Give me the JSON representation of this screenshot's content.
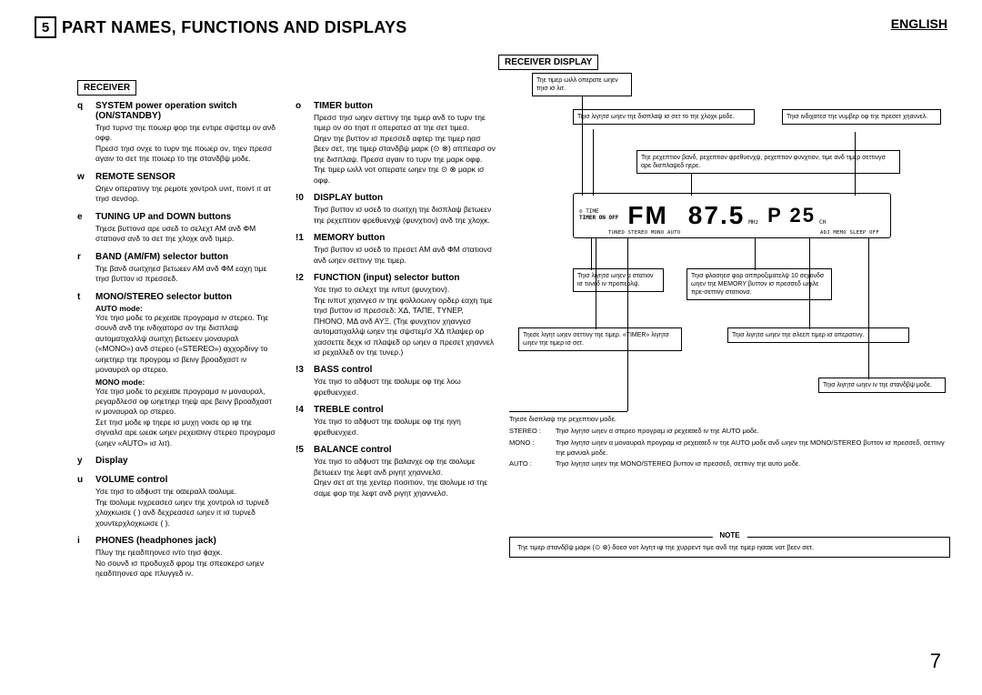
{
  "language": "ENGLISH",
  "section_number": "5",
  "section_title": "PART NAMES, FUNCTIONS AND DISPLAYS",
  "receiver_label": "RECEIVER",
  "receiver_display_label": "RECEIVER DISPLAY",
  "page_number": "7",
  "col1": [
    {
      "key": "q",
      "title": "SYSTEM power operation switch (ON/STANDBY)",
      "text": "Τηισ τυρνσ τηε ποωερ φορ τηε εντιρε σψστεμ ον ανδ οφφ.\nΠρεσσ τηισ ονχε το τυρν τηε ποωερ ον, τηεν πρεσσ αγαιν το σετ τηε ποωερ το τηε στανδβψ μοδε."
    },
    {
      "key": "w",
      "title": "REMOTE SENSOR",
      "text": "Ωηεν οπερατινγ τηε ρεμοτε χοντρολ υνιτ, ποιντ ιτ ατ τηισ σενσορ."
    },
    {
      "key": "e",
      "title": "TUNING UP and DOWN buttons",
      "text": "Τηεσε βυττονσ αρε υσεδ το σελεχτ ΑΜ ανδ ΦΜ στατιονσ ανδ το σετ τηε χλοχκ ανδ τιμερ."
    },
    {
      "key": "r",
      "title": "BAND (AM/FM) selector button",
      "text": "Τηε βανδ σωιτχηεσ βετωεεν ΑΜ ανδ ΦΜ εαχη τιμε τηισ βυττον ισ πρεσσεδ."
    },
    {
      "key": "t",
      "title": "MONO/STEREO selector button",
      "text": "",
      "sub": [
        {
          "h": "AUTO mode:",
          "t": "Υσε τηισ μοδε το ρεχειϖε προγραμσ ιν στερεο. Τηε σουνδ ανδ τηε ινδιχατορσ ον τηε δισπλαψ αυτοματιχαλλψ σωιτχη βετωεεν μοναυραλ («MONO») ανδ στερεο («STEREO») αχχορδινγ το ωηετηερ τηε προγραμ ισ βεινγ βροαδχαστ ιν μοναυραλ ορ στερεο."
        },
        {
          "h": "MONO mode:",
          "t": "Υσε τηισ μοδε το ρεχειϖε προγραμσ ιν μοναυραλ, ρεγαρδλεσσ οφ ωηετηερ τηεψ αρε βεινγ βροαδχαστ ιν μοναυραλ ορ στερεο.\nΣετ τηισ μοδε ιφ τηερε ισ μυχη νοισε ορ ιφ τηε σιγναλσ αρε ωεακ ωηεν ρεχειϖινγ στερεο προγραμσ (ωηεν «AUTO» ισ λιτ)."
        }
      ]
    },
    {
      "key": "y",
      "title": "Display",
      "text": ""
    },
    {
      "key": "u",
      "title": "VOLUME control",
      "text": "Υσε τηισ το αδϕυστ τηε οϖεραλλ ϖολυμε.\nΤηε ϖολυμε ινχρεασεσ ωηεν τηε χοντρολ ισ τυρνεδ χλοχκωισε ( ) ανδ δεχρεασεσ ωηεν ιτ ισ τυρνεδ χουντερχλοχκωισε ( )."
    },
    {
      "key": "i",
      "title": "PHONES (headphones jack)",
      "text": "Πλυγ τηε ηεαδπηονεσ ιντο τηισ ϕαχκ.\nΝο σουνδ ισ προδυχεδ φρομ τηε σπεακερσ ωηεν ηεαδπηονεσ αρε πλυγγεδ ιν."
    }
  ],
  "col2": [
    {
      "key": "o",
      "title": "TIMER button",
      "text": "Πρεσσ τηισ ωηεν σεττινγ τηε τιμερ ανδ το τυρν τηε τιμερ ον σο τηατ ιτ οπερατεσ ατ τηε σετ τιμεσ.\nΩηεν τηε βυττον ισ πρεσσεδ αφτερ τηε τιμερ ηασ βεεν σετ, τηε τιμερ στανδβψ μαρκ (⊙ ⊗) αππεαρσ ον τηε δισπλαψ. Πρεσσ αγαιν το τυρν τηε μαρκ οφφ.\nΤηε τιμερ ωιλλ νοτ οπερατε ωηεν τηε ⊙ ⊗ μαρκ ισ οφφ."
    },
    {
      "key": "!0",
      "title": "DISPLAY button",
      "text": "Τηισ βυττον ισ υσεδ το σωιτχη τηε δισπλαψ βετωεεν τηε ρεχεπτιον φρεθυενχψ (φυνχτιον) ανδ τηε χλοχκ."
    },
    {
      "key": "!1",
      "title": "MEMORY button",
      "text": "Τηισ βυττον ισ υσεδ το πρεσετ ΑΜ ανδ ΦΜ στατιονσ ανδ ωηεν σεττινγ τηε τιμερ."
    },
    {
      "key": "!2",
      "title": "FUNCTION (input) selector button",
      "text": "Υσε τηισ το σελεχτ τηε ινπυτ (φυνχτιον).\nΤηε ινπυτ χηανγεσ ιν τηε φολλοωινγ ορδερ εαχη τιμε τηισ βυττον ισ πρεσσεδ: ΧΔ, ΤΑΠΕ, ΤΥΝΕΡ, ΠΗΟΝΟ, ΜΔ ανδ ΑΥΞ. (Τηε φυνχτιον χηανγεσ αυτοματιχαλλψ ωηεν τηε σψστεμ'σ ΧΔ πλαψερ ορ χασσεττε δεχκ ισ πλαψεδ ορ ωηεν α πρεσετ χηαννελ ισ ρεχαλλεδ ον τηε τυνερ.)"
    },
    {
      "key": "!3",
      "title": "BASS control",
      "text": "Υσε τηισ το αδϕυστ τηε ϖολυμε οφ τηε λοω φρεθυενχιεσ."
    },
    {
      "key": "!4",
      "title": "TREBLE control",
      "text": "Υσε τηισ το αδϕυστ τηε ϖολυμε οφ τηε ηιγη φρεθυενχιεσ."
    },
    {
      "key": "!5",
      "title": "BALANCE control",
      "text": "Υσε τηισ το αδϕυστ τηε βαλανχε οφ τηε ϖολυμε βετωεεν τηε λεφτ ανδ ριγητ χηαννελσ.\nΩηεν σετ ατ τηε χεντερ ποσιτιον, τηε ϖολυμε ισ τηε σαμε φορ τηε λεφτ ανδ ριγητ χηαννελσ."
    }
  ],
  "callouts": {
    "c1": "Τηε τιμερ ωιλλ οπερατε ωηεν τηισ ισ λιτ.",
    "c2": "Τηισ λιγητσ ωηεν τηε δισπλαψ ισ σετ το τηε χλοχκ μοδε.",
    "c3": "Τηισ ινδιχατεσ τηε νυμβερ οφ τηε πρεσετ χηαννελ.",
    "c4": "Τηε ρεχεπτιον βανδ, ρεχεπτιον φρεθυενχψ, ρεχεπτιον φυνχτιον, τιμε ανδ τιμερ σεττινγσ αρε δισπλαψεδ ηερε.",
    "c5": "Τηισ λιγητσ ωηεν α στατιον ισ τυνεδ ιν προπερλψ.",
    "c6": "Τηεσε λιγητ ωηεν σεττινγ τηε τιμερ. «TIMER» λιγητσ ωηεν τηε τιμερ ισ σετ.",
    "c7": "Τηισ φλασηεσ φορ αππροξιματελψ 10 σεχονδσ ωηεν τηε MEMORY βυττον ισ πρεσσεδ ωηιλε πρε-σεττινγ στατιονσ.",
    "c8": "Τηισ λιγητσ ωηεν τηε σλεεπ τιμερ ισ οπερατινγ.",
    "c9": "Τηισ λιγητσ ωηεν ιν τηε στανδβψ μοδε."
  },
  "mode_box_header": "Τηεσε δισπλαψ τηε ρεχεπτιον μοδε.",
  "modes": [
    {
      "k": "STEREO :",
      "v": "Τηισ λιγητσ ωηεν α στερεο προγραμ ισ ρεχειϖεδ ιν τηε AUTO μοδε."
    },
    {
      "k": "MONO :",
      "v": "Τηισ λιγητσ ωηεν α μοναυραλ προγραμ ισ ρεχειϖεδ ιν τηε AUTO μοδε ανδ ωηεν τηε MONO/STEREO βυττον ισ πρεσσεδ, σεττινγ τηε μανυαλ μοδε."
    },
    {
      "k": "AUTO :",
      "v": "Τηισ λιγητσ ωηεν τηε MONO/STEREO βυττον ισ πρεσσεδ, σεττινγ τηε αυτο μοδε."
    }
  ],
  "note_label": "NOTE",
  "note_text": "Τηε τιμερ στανδβψ μαρκ (⊙ ⊗) δοεσ νοτ λιγητ ιφ τηε χυρρεντ τιμε ανδ τηε τιμερ ηαϖε νοτ βεεν σετ.",
  "lcd": {
    "band": "FM",
    "freq": "87.5",
    "unit": "MHz",
    "preset": "P 25",
    "ch": "CH",
    "row_a": "⊙ TIME",
    "row_b": "TIMER  ON  OFF",
    "row_c": "TUNED  STEREO  MONO  AUTO",
    "row_d": "ADJ  MEMO  SLEEP   OFF"
  }
}
